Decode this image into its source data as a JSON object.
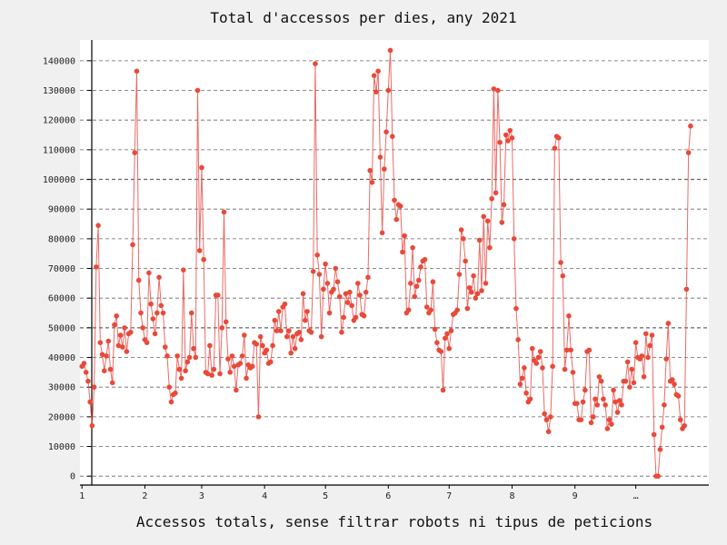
{
  "chart_data": {
    "type": "line",
    "title": "Total d'accessos per dies, any 2021",
    "xlabel": "Accessos totals, sense filtrar robots ni tipus de peticions",
    "ylabel": "",
    "x_ticks": [
      {
        "day": 1,
        "label": "1"
      },
      {
        "day": 32,
        "label": "2"
      },
      {
        "day": 60,
        "label": "3"
      },
      {
        "day": 91,
        "label": "4"
      },
      {
        "day": 121,
        "label": "5"
      },
      {
        "day": 152,
        "label": "6"
      },
      {
        "day": 182,
        "label": "7"
      },
      {
        "day": 213,
        "label": "8"
      },
      {
        "day": 244,
        "label": "9"
      },
      {
        "day": 274,
        "label": "…"
      }
    ],
    "y_ticks": [
      0,
      10000,
      20000,
      30000,
      40000,
      50000,
      60000,
      70000,
      80000,
      90000,
      100000,
      110000,
      120000,
      130000,
      140000
    ],
    "xlim": [
      0,
      310
    ],
    "ylim": [
      -3000,
      147000
    ],
    "grid": true,
    "legend": "none",
    "line_color": "#e8504a",
    "marker_color": "#e84a3a",
    "grid_color": "#666666",
    "series": [
      {
        "values": [
          37000,
          38000,
          35000,
          32000,
          25000,
          17000,
          30000,
          70500,
          84500,
          45000,
          41000,
          35500,
          40500,
          45500,
          36000,
          31500,
          51000,
          54000,
          44000,
          47500,
          43500,
          50000,
          42000,
          48000,
          48500,
          78000,
          109000,
          136500,
          66000,
          55000,
          50000,
          46000,
          45000,
          68500,
          58000,
          53000,
          48000,
          55000,
          67000,
          57500,
          55000,
          43500,
          40500,
          30000,
          25000,
          27500,
          28000,
          40500,
          36000,
          33000,
          69500,
          35500,
          38500,
          40000,
          55000,
          43000,
          40000,
          130000,
          76000,
          104000,
          73000,
          35000,
          34500,
          44000,
          34000,
          36000,
          61000,
          61000,
          34500,
          50000,
          89000,
          52000,
          39500,
          35000,
          40500,
          37000,
          29000,
          37500,
          38000,
          40500,
          47500,
          33000,
          37500,
          36500,
          37000,
          45000,
          44500,
          20000,
          47000,
          44000,
          41500,
          42500,
          38000,
          38500,
          44000,
          52500,
          49000,
          55500,
          49000,
          57000,
          58000,
          47000,
          49000,
          41500,
          47000,
          43000,
          48000,
          48500,
          46000,
          61500,
          52500,
          55500,
          49000,
          48500,
          69000,
          139000,
          74500,
          68000,
          47000,
          63000,
          71500,
          65000,
          55000,
          62000,
          63000,
          70000,
          65500,
          60500,
          48500,
          53500,
          61500,
          58500,
          62000,
          57500,
          52500,
          53500,
          65000,
          61000,
          54500,
          54000,
          62000,
          67000,
          103000,
          99000,
          135000,
          129500,
          136500,
          107500,
          82000,
          103500,
          116000,
          130000,
          143500,
          114500,
          93000,
          86500,
          91500,
          91000,
          75500,
          81000,
          55000,
          56000,
          65000,
          77000,
          60500,
          64000,
          66000,
          70500,
          72500,
          73000,
          57000,
          55000,
          56000,
          65500,
          49500,
          45000,
          42500,
          42000,
          29000,
          46500,
          48000,
          43000,
          49000,
          54500,
          55000,
          56000,
          68000,
          83000,
          80000,
          72500,
          56500,
          63500,
          62000,
          67500,
          60000,
          61500,
          79500,
          62500,
          87500,
          65000,
          86000,
          77000,
          93500,
          130500,
          95500,
          130000,
          112500,
          85500,
          91500,
          115000,
          113000,
          116500,
          114000,
          80000,
          56500,
          46000,
          31000,
          33000,
          36500,
          28000,
          25000,
          26000,
          43000,
          39000,
          38000,
          40000,
          42000,
          36500,
          21000,
          19000,
          15000,
          20000,
          37000,
          110500,
          114500,
          114000,
          72000,
          67500,
          36000,
          42500,
          54000,
          42500,
          35000,
          24500,
          24500,
          19000,
          19000,
          25000,
          29000,
          42000,
          42500,
          18000,
          20000,
          26000,
          24000,
          33500,
          32000,
          26000,
          24000,
          16000,
          19000,
          17500,
          29000,
          25000,
          21500,
          25500,
          24000,
          32000,
          32000,
          38500,
          30000,
          36000,
          31500,
          45000,
          40000,
          39500,
          40500,
          33500,
          48000,
          40000,
          44000,
          47500,
          14000,
          0,
          0,
          9000,
          16500,
          24000,
          39500,
          51500,
          32000,
          32500,
          31000,
          27500,
          27000,
          19000,
          16000,
          17000,
          63000,
          109000,
          118000
        ]
      }
    ]
  }
}
